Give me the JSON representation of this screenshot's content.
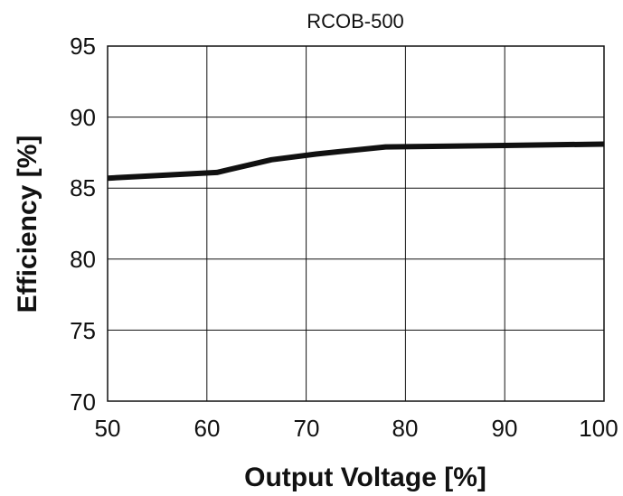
{
  "chart_data": {
    "type": "line",
    "title": "RCOB-500",
    "xlabel": "Output Voltage [%]",
    "ylabel": "Efficiency [%]",
    "xlim": [
      50,
      100
    ],
    "ylim": [
      70,
      95
    ],
    "xticks": [
      "50",
      "60",
      "70",
      "80",
      "90",
      "100"
    ],
    "yticks": [
      "95",
      "90",
      "85",
      "80",
      "75",
      "70"
    ],
    "grid": true,
    "series": [
      {
        "x": [
          50,
          61,
          66.5,
          71,
          78,
          90,
          100
        ],
        "y": [
          85.7,
          86.1,
          87.0,
          87.4,
          87.9,
          88.0,
          88.1
        ],
        "color": "#111111"
      }
    ]
  }
}
